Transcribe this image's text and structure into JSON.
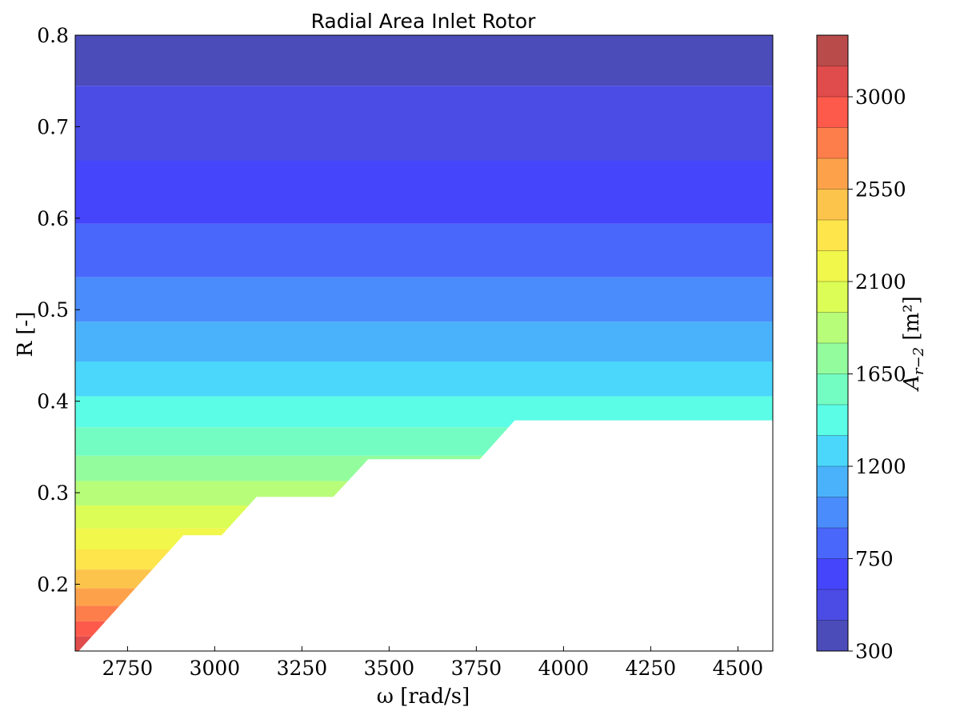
{
  "chart_data": {
    "type": "contour",
    "title": "Radial Area Inlet Rotor",
    "xlabel": "ω [rad/s]",
    "ylabel": "R [-]",
    "xlim": [
      2600,
      4600
    ],
    "ylim": [
      0.127,
      0.8
    ],
    "x_ticks": [
      2750,
      3000,
      3250,
      3500,
      3750,
      4000,
      4250,
      4500
    ],
    "y_ticks": [
      0.2,
      0.3,
      0.4,
      0.5,
      0.6,
      0.7,
      0.8
    ],
    "x_tick_labels": [
      "2750",
      "3000",
      "3250",
      "3500",
      "3750",
      "4000",
      "4250",
      "4500"
    ],
    "y_tick_labels": [
      "0.2",
      "0.3",
      "0.4",
      "0.5",
      "0.6",
      "0.7",
      "0.8"
    ],
    "colorbar": {
      "label": "A_{r-2} [m²]",
      "label_main": "A",
      "label_sub": "r−2",
      "label_unit": " [m²]",
      "vmin": 300,
      "vmax": 3300,
      "step": 150,
      "ticks": [
        300,
        750,
        1200,
        1650,
        2100,
        2550,
        3000
      ],
      "tick_labels": [
        "300",
        "750",
        "1200",
        "1650",
        "2100",
        "2550",
        "3000"
      ],
      "colors": [
        "#4b4bb9",
        "#4b4be6",
        "#4545fb",
        "#4a67fb",
        "#4a8cfb",
        "#4ab2fb",
        "#4ad7fb",
        "#5bfde6",
        "#73fdc2",
        "#93fd9e",
        "#b8fd79",
        "#dbfd55",
        "#f1f74b",
        "#fde54b",
        "#fdc44b",
        "#fda24b",
        "#fd7e4b",
        "#fd5a4b",
        "#e04b4b",
        "#b94b4b"
      ]
    },
    "bands": [
      {
        "r_from": 0.7447,
        "r_to": 0.8,
        "level": 0
      },
      {
        "r_from": 0.6632,
        "r_to": 0.7447,
        "level": 1
      },
      {
        "r_from": 0.5941,
        "r_to": 0.6632,
        "level": 2
      },
      {
        "r_from": 0.5355,
        "r_to": 0.5941,
        "level": 3
      },
      {
        "r_from": 0.4868,
        "r_to": 0.5355,
        "level": 4
      },
      {
        "r_from": 0.4434,
        "r_to": 0.4868,
        "level": 5
      },
      {
        "r_from": 0.4053,
        "r_to": 0.4434,
        "level": 6
      },
      {
        "r_from": 0.3715,
        "r_to": 0.4053,
        "level": 7
      },
      {
        "r_from": 0.3404,
        "r_to": 0.3715,
        "level": 8
      },
      {
        "r_from": 0.3127,
        "r_to": 0.3404,
        "level": 9
      },
      {
        "r_from": 0.286,
        "r_to": 0.3127,
        "level": 10
      },
      {
        "r_from": 0.261,
        "r_to": 0.286,
        "level": 11
      },
      {
        "r_from": 0.238,
        "r_to": 0.261,
        "level": 12
      },
      {
        "r_from": 0.216,
        "r_to": 0.238,
        "level": 13
      },
      {
        "r_from": 0.1955,
        "r_to": 0.216,
        "level": 14
      },
      {
        "r_from": 0.1765,
        "r_to": 0.1955,
        "level": 15
      },
      {
        "r_from": 0.1595,
        "r_to": 0.1765,
        "level": 16
      },
      {
        "r_from": 0.143,
        "r_to": 0.1595,
        "level": 17
      },
      {
        "r_from": 0.127,
        "r_to": 0.143,
        "level": 18
      }
    ],
    "valid_region_lower_boundary": [
      [
        2600,
        0.127
      ],
      [
        2610,
        0.127
      ],
      [
        2910,
        0.2535
      ],
      [
        3020,
        0.2535
      ],
      [
        3120,
        0.2955
      ],
      [
        3340,
        0.2955
      ],
      [
        3440,
        0.3365
      ],
      [
        3760,
        0.3365
      ],
      [
        3860,
        0.379
      ],
      [
        4600,
        0.379
      ]
    ]
  }
}
